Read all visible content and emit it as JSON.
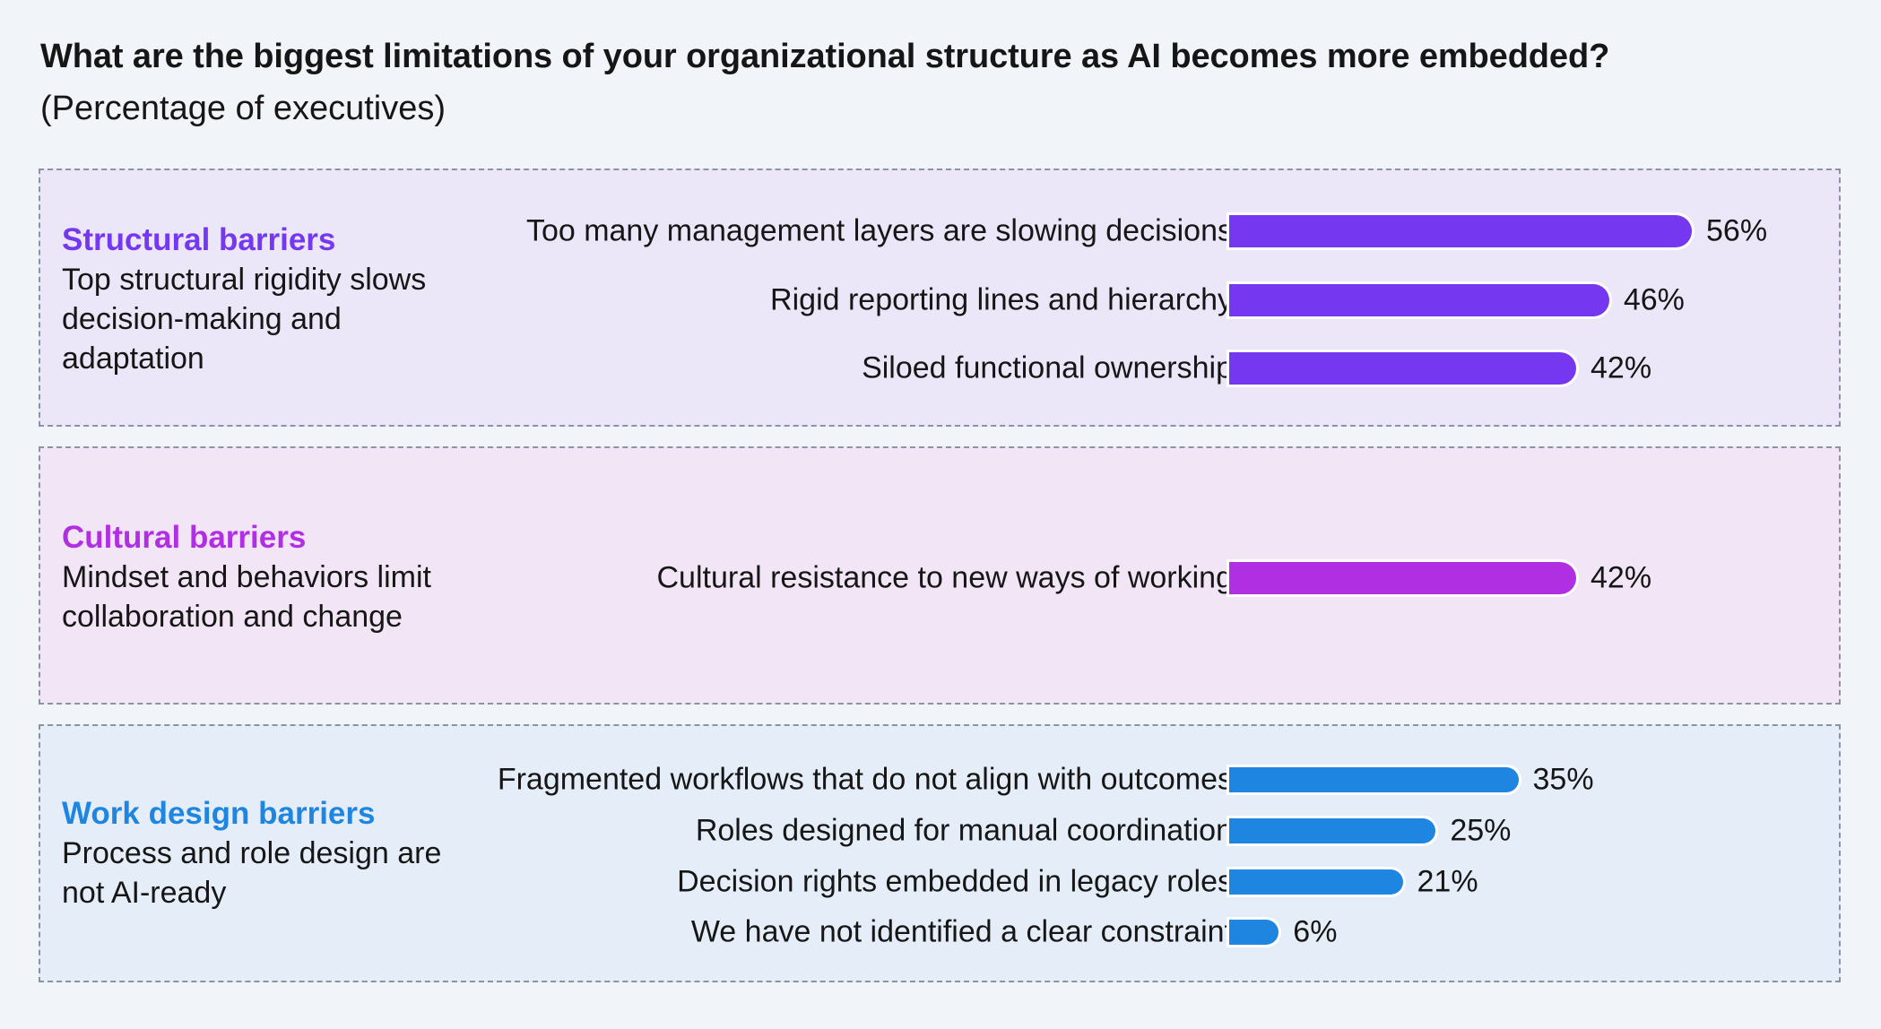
{
  "header": {
    "title": "What are the biggest limitations of your organizational structure as AI becomes more embedded?",
    "subtitle": "(Percentage of executives)"
  },
  "colors": {
    "structural": "#7538f0",
    "cultural": "#b12fe3",
    "work_design": "#1e86e1"
  },
  "chart_data": {
    "type": "bar",
    "orientation": "horizontal",
    "title": "What are the biggest limitations of your organizational structure as AI becomes more embedded?",
    "subtitle": "(Percentage of executives)",
    "unit": "%",
    "xlim": [
      0,
      60
    ],
    "groups": [
      {
        "key": "structural",
        "name": "Structural barriers",
        "description": "Top structural rigidity slows decision-making and adaptation",
        "color": "#7538f0",
        "categories": [
          "Too many management layers are slowing decisions",
          "Rigid reporting lines and hierarchy",
          "Siloed functional ownership"
        ],
        "values": [
          56,
          46,
          42
        ],
        "labels": [
          "56%",
          "46%",
          "42%"
        ]
      },
      {
        "key": "cultural",
        "name": "Cultural barriers",
        "description": "Mindset and behaviors limit collaboration and change",
        "color": "#b12fe3",
        "categories": [
          "Cultural resistance to new ways of working"
        ],
        "values": [
          42
        ],
        "labels": [
          "42%"
        ]
      },
      {
        "key": "work_design",
        "name": "Work design barriers",
        "description": "Process and role design are not AI-ready",
        "color": "#1e86e1",
        "categories": [
          "Fragmented workflows that do not align with outcomes",
          "Roles designed for manual coordination",
          "Decision rights embedded in legacy roles",
          "We have not identified a clear constraint"
        ],
        "values": [
          35,
          25,
          21,
          6
        ],
        "labels": [
          "35%",
          "25%",
          "21%",
          "6%"
        ]
      }
    ]
  }
}
